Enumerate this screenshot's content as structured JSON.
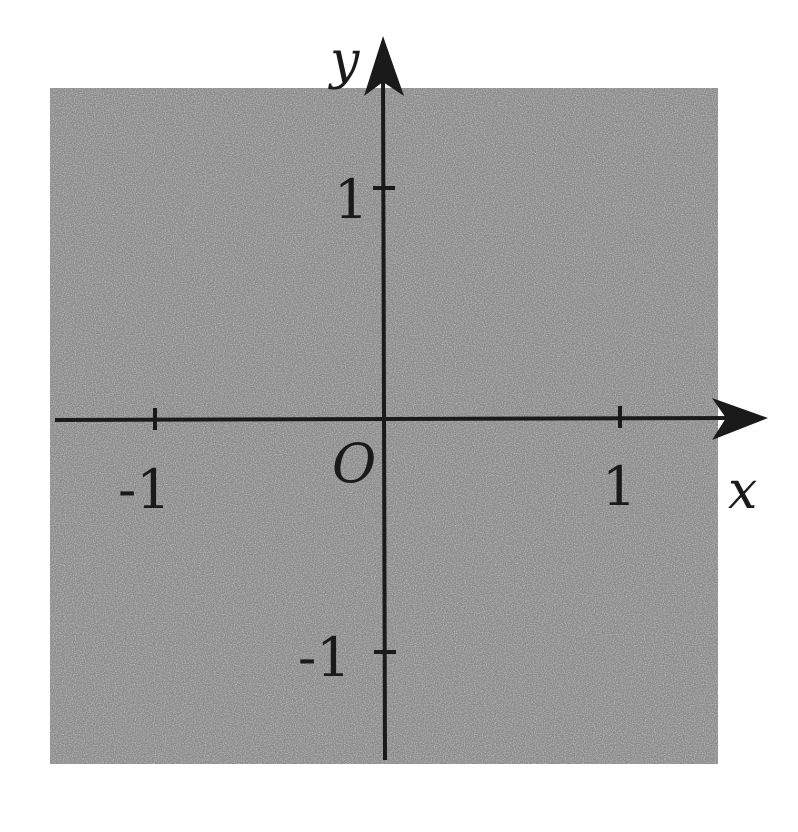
{
  "figure": {
    "x_axis_label": "x",
    "y_axis_label": "y",
    "origin_label": "O",
    "x_ticks": [
      {
        "value": -1,
        "label": "-1"
      },
      {
        "value": 1,
        "label": "1"
      }
    ],
    "y_ticks": [
      {
        "value": 1,
        "label": "1"
      },
      {
        "value": -1,
        "label": "-1"
      }
    ],
    "shaded_region": {
      "x_range": [
        -1.45,
        1.45
      ],
      "y_range": [
        -1.45,
        1.45
      ]
    },
    "colors": {
      "shade": "#8a8a8a",
      "axes": "#1a1a1a",
      "background": "#ffffff"
    }
  }
}
